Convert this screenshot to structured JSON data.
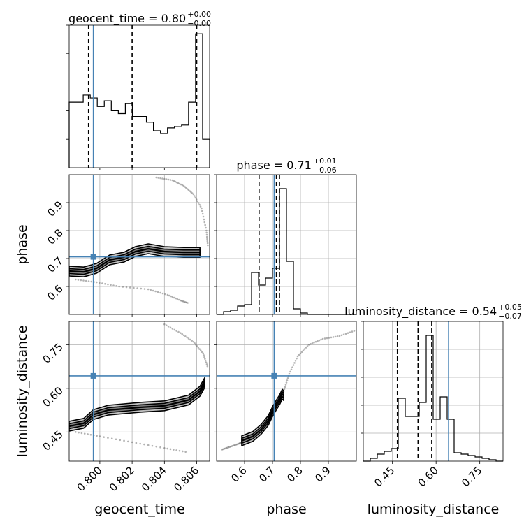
{
  "chart_data": [
    {
      "type": "histogram",
      "panel": "geocent_time marginal",
      "title_main": "geocent_time = 0.80",
      "title_sup": "+0.00",
      "title_sub": "−0.00",
      "x_range": [
        0.7981,
        0.8068
      ],
      "x_ticks": [
        0.8,
        0.802,
        0.804,
        0.806
      ],
      "quantile_lines": [
        0.7993,
        0.802,
        0.806
      ],
      "truth": 0.7996,
      "counts": [
        0.46,
        0.46,
        0.51,
        0.49,
        0.43,
        0.47,
        0.4,
        0.38,
        0.45,
        0.36,
        0.36,
        0.32,
        0.26,
        0.24,
        0.28,
        0.29,
        0.3,
        0.46,
        0.94,
        0.2
      ]
    },
    {
      "type": "histogram",
      "panel": "phase marginal",
      "title_main": "phase = 0.71",
      "title_sup": "+0.01",
      "title_sub": "−0.06",
      "x_range": [
        0.5,
        1.0
      ],
      "x_ticks": [
        0.6,
        0.7,
        0.8,
        0.9
      ],
      "quantile_lines": [
        0.652,
        0.714,
        0.725
      ],
      "truth": 0.706,
      "counts": [
        0.0,
        0.02,
        0.03,
        0.06,
        0.07,
        0.3,
        0.21,
        0.26,
        0.33,
        0.9,
        0.38,
        0.04,
        0.01,
        0.0,
        0.0,
        0.0,
        0.0,
        0.0,
        0.0,
        0.0
      ]
    },
    {
      "type": "histogram",
      "panel": "luminosity_distance marginal",
      "title_main": "luminosity_distance = 0.54",
      "title_sup": "+0.05",
      "title_sub": "−0.07",
      "x_range": [
        0.35,
        0.83
      ],
      "x_ticks": [
        0.45,
        0.6,
        0.75
      ],
      "tick_labels": [
        "0.45",
        "0.60",
        "0.75"
      ],
      "quantile_lines": [
        0.467,
        0.538,
        0.585
      ],
      "truth": 0.643,
      "counts": [
        0.0,
        0.02,
        0.05,
        0.07,
        0.09,
        0.45,
        0.32,
        0.32,
        0.42,
        0.9,
        0.3,
        0.46,
        0.3,
        0.06,
        0.05,
        0.04,
        0.03,
        0.02,
        0.01,
        0.0
      ]
    },
    {
      "type": "scatter",
      "panel": "phase vs geocent_time",
      "x_range": [
        0.7981,
        0.8068
      ],
      "y_range": [
        0.5,
        1.0
      ],
      "y_ticks": [
        0.6,
        0.7,
        0.8,
        0.9
      ],
      "truth": [
        0.7996,
        0.706
      ],
      "contour": [
        [
          0.7981,
          0.655
        ],
        [
          0.799,
          0.652
        ],
        [
          0.7998,
          0.665
        ],
        [
          0.8006,
          0.695
        ],
        [
          0.8015,
          0.705
        ],
        [
          0.8022,
          0.725
        ],
        [
          0.803,
          0.735
        ],
        [
          0.804,
          0.725
        ],
        [
          0.8052,
          0.722
        ],
        [
          0.8062,
          0.722
        ]
      ],
      "scatter_trails": [
        [
          [
            0.8035,
            0.99
          ],
          [
            0.8045,
            0.98
          ],
          [
            0.8052,
            0.96
          ],
          [
            0.8058,
            0.93
          ],
          [
            0.8063,
            0.88
          ],
          [
            0.8066,
            0.8
          ],
          [
            0.8067,
            0.74
          ]
        ],
        [
          [
            0.7985,
            0.625
          ],
          [
            0.7998,
            0.615
          ],
          [
            0.8012,
            0.6
          ],
          [
            0.803,
            0.59
          ],
          [
            0.8042,
            0.57
          ],
          [
            0.805,
            0.55
          ],
          [
            0.8055,
            0.54
          ]
        ]
      ]
    },
    {
      "type": "scatter",
      "panel": "luminosity_distance vs geocent_time",
      "x_range": [
        0.7981,
        0.8068
      ],
      "y_range": [
        0.35,
        0.83
      ],
      "y_ticks": [
        0.45,
        0.6,
        0.75
      ],
      "tick_labels": [
        "0.45",
        "0.60",
        "0.75"
      ],
      "truth": [
        0.7996,
        0.643
      ],
      "contour": [
        [
          0.7981,
          0.47
        ],
        [
          0.799,
          0.48
        ],
        [
          0.7996,
          0.51
        ],
        [
          0.8005,
          0.525
        ],
        [
          0.8015,
          0.53
        ],
        [
          0.8025,
          0.535
        ],
        [
          0.804,
          0.54
        ],
        [
          0.8055,
          0.56
        ],
        [
          0.8062,
          0.59
        ],
        [
          0.8065,
          0.62
        ]
      ],
      "scatter_trails": [
        [
          [
            0.804,
            0.82
          ],
          [
            0.805,
            0.79
          ],
          [
            0.8058,
            0.76
          ],
          [
            0.8064,
            0.72
          ],
          [
            0.8067,
            0.67
          ]
        ],
        [
          [
            0.7985,
            0.45
          ],
          [
            0.8,
            0.435
          ],
          [
            0.802,
            0.415
          ],
          [
            0.804,
            0.395
          ],
          [
            0.8055,
            0.38
          ]
        ]
      ]
    },
    {
      "type": "scatter",
      "panel": "luminosity_distance vs phase",
      "x_range": [
        0.5,
        1.0
      ],
      "y_range": [
        0.35,
        0.83
      ],
      "x_ticks": [
        0.6,
        0.7,
        0.8,
        0.9
      ],
      "y_ticks": [
        0.45,
        0.6,
        0.75
      ],
      "truth": [
        0.706,
        0.643
      ],
      "contour": [
        [
          0.59,
          0.42
        ],
        [
          0.63,
          0.435
        ],
        [
          0.66,
          0.46
        ],
        [
          0.685,
          0.49
        ],
        [
          0.7,
          0.52
        ],
        [
          0.715,
          0.545
        ],
        [
          0.725,
          0.56
        ],
        [
          0.73,
          0.57
        ],
        [
          0.735,
          0.58
        ],
        [
          0.74,
          0.575
        ]
      ],
      "scatter_trails": [
        [
          [
            0.74,
            0.59
          ],
          [
            0.76,
            0.65
          ],
          [
            0.79,
            0.71
          ],
          [
            0.83,
            0.75
          ],
          [
            0.88,
            0.77
          ],
          [
            0.94,
            0.78
          ],
          [
            1.0,
            0.8
          ]
        ],
        [
          [
            0.52,
            0.39
          ],
          [
            0.55,
            0.4
          ],
          [
            0.58,
            0.41
          ],
          [
            0.6,
            0.42
          ]
        ]
      ]
    }
  ],
  "axis_labels": {
    "geocent_time": "geocent_time",
    "phase": "phase",
    "luminosity_distance": "luminosity_distance"
  },
  "colors": {
    "truth": "#4682b4",
    "line": "#000000",
    "grid": "#b0b0b0",
    "fill_outer": "#c0c0c0",
    "fill_inner": "#7a7a7a"
  }
}
